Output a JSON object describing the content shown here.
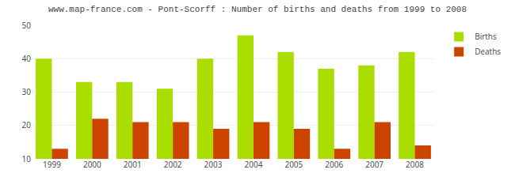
{
  "chart_data": {
    "type": "bar",
    "title": "www.map-france.com - Pont-Scorff : Number of births and deaths from 1999 to 2008",
    "categories": [
      "1999",
      "2000",
      "2001",
      "2002",
      "2003",
      "2004",
      "2005",
      "2006",
      "2007",
      "2008"
    ],
    "series": [
      {
        "name": "Births",
        "color": "#aadd00",
        "values": [
          40,
          33,
          33,
          31,
          40,
          47,
          42,
          37,
          38,
          42
        ]
      },
      {
        "name": "Deaths",
        "color": "#cc4400",
        "values": [
          13,
          22,
          21,
          21,
          19,
          21,
          19,
          13,
          21,
          14
        ]
      }
    ],
    "ylim": [
      10,
      50
    ],
    "yticks": [
      10,
      20,
      30,
      40,
      50
    ],
    "grid": true,
    "legend": "upper right"
  }
}
